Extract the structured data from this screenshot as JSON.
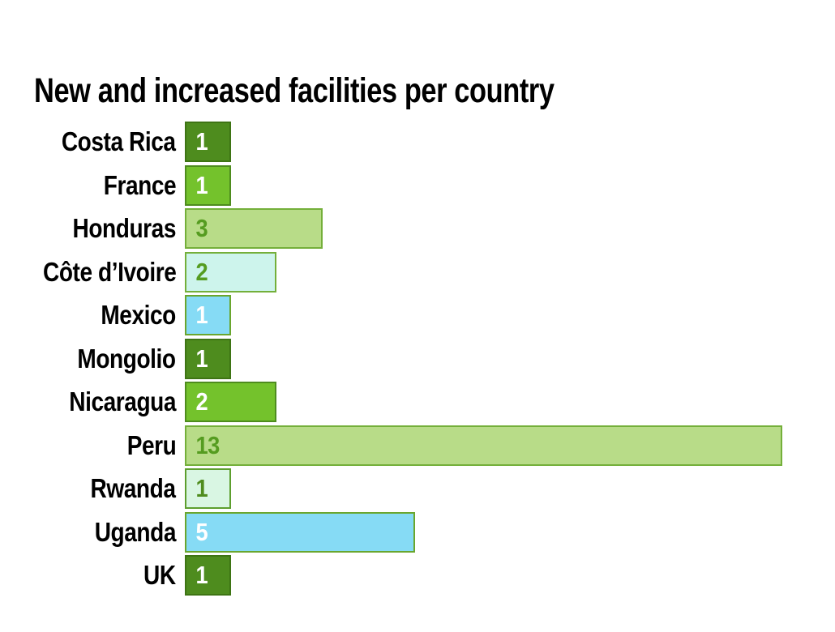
{
  "title": "New and increased facilities per country",
  "chart_data": {
    "type": "bar",
    "orientation": "horizontal",
    "title": "New and increased facilities per country",
    "categories": [
      "Costa Rica",
      "France",
      "Honduras",
      "Côte d’Ivoire",
      "Mexico",
      "Mongolio",
      "Nicaragua",
      "Peru",
      "Rwanda",
      "Uganda",
      "UK"
    ],
    "values": [
      1,
      1,
      3,
      2,
      1,
      1,
      2,
      13,
      1,
      5,
      1
    ],
    "data_labels": [
      "1",
      "1",
      "3",
      "2",
      "1",
      "1",
      "2",
      "13",
      "1",
      "5",
      "1"
    ],
    "xlim": [
      0,
      13
    ],
    "grid": false,
    "legend": false,
    "axis_ticks": "none",
    "bar_styles": [
      {
        "fill": "#4e8c1e",
        "border": "#3e7414",
        "value_color": "#ffffff"
      },
      {
        "fill": "#74c22c",
        "border": "#4e8c1e",
        "value_color": "#ffffff"
      },
      {
        "fill": "#b8dc88",
        "border": "#74af3a",
        "value_color": "#559c20"
      },
      {
        "fill": "#cdf4ec",
        "border": "#74af3a",
        "value_color": "#559c20"
      },
      {
        "fill": "#86dbf5",
        "border": "#6aa62e",
        "value_color": "#ffffff"
      },
      {
        "fill": "#4e8c1e",
        "border": "#3e7414",
        "value_color": "#ffffff"
      },
      {
        "fill": "#74c22c",
        "border": "#4e8c1e",
        "value_color": "#ffffff"
      },
      {
        "fill": "#b8dc88",
        "border": "#74af3a",
        "value_color": "#559c20"
      },
      {
        "fill": "#d9f6e3",
        "border": "#5d9e2e",
        "value_color": "#4f8c1e"
      },
      {
        "fill": "#86dbf5",
        "border": "#6aa62e",
        "value_color": "#ffffff"
      },
      {
        "fill": "#4e8c1e",
        "border": "#3e7414",
        "value_color": "#ffffff"
      }
    ],
    "colors_legend": {
      "dark_green": "#4e8c1e",
      "bright_green": "#74c22c",
      "light_green": "#b8dc88",
      "pale_cyan": "#cdf4ec",
      "sky_blue": "#86dbf5",
      "pale_mint": "#d9f6e3"
    }
  }
}
